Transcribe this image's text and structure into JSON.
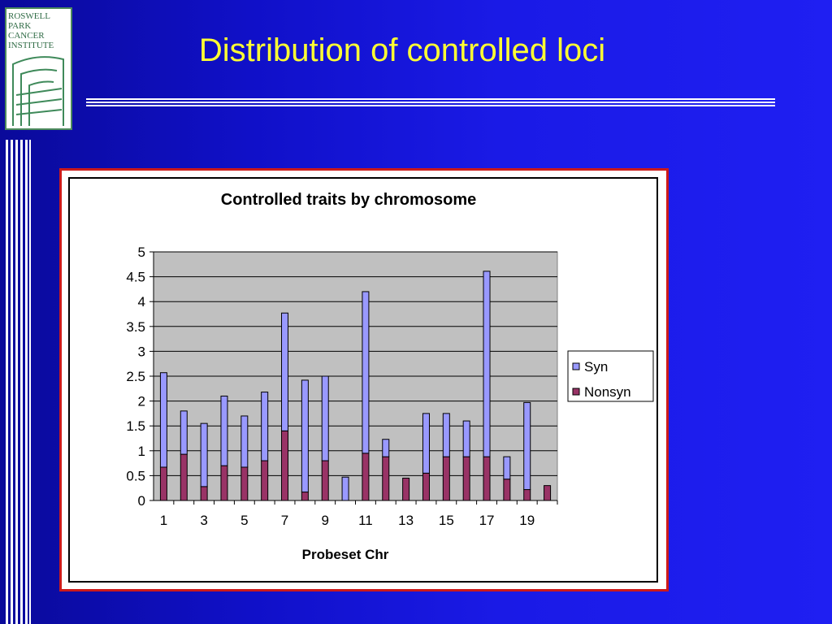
{
  "slide": {
    "title": "Distribution of controlled loci",
    "logo_lines": [
      "ROSWELL",
      "PARK",
      "CANCER",
      "INSTITUTE"
    ],
    "colors": {
      "background": "#1414d2",
      "title": "#ffff33",
      "chart_frame": "#cc1a1a"
    }
  },
  "chart_data": {
    "type": "bar",
    "stacked": true,
    "title": "Controlled traits by chromosome",
    "xlabel": "Probeset Chr",
    "ylabel": "",
    "ylim": [
      0,
      5
    ],
    "yticks": [
      "0",
      "0.5",
      "1",
      "1.5",
      "2",
      "2.5",
      "3",
      "3.5",
      "4",
      "4.5",
      "5"
    ],
    "categories": [
      "1",
      "2",
      "3",
      "4",
      "5",
      "6",
      "7",
      "8",
      "9",
      "10",
      "11",
      "12",
      "13",
      "14",
      "15",
      "16",
      "17",
      "18",
      "19",
      "20"
    ],
    "xtick_labels": [
      "1",
      "3",
      "5",
      "7",
      "9",
      "11",
      "13",
      "15",
      "17",
      "19"
    ],
    "series": [
      {
        "name": "Nonsyn",
        "color": "#993366",
        "values": [
          0.67,
          0.93,
          0.28,
          0.7,
          0.67,
          0.8,
          1.4,
          0.17,
          0.8,
          0,
          0.95,
          0.88,
          0.45,
          0.55,
          0.88,
          0.88,
          0.88,
          0.43,
          0.22,
          0.3
        ]
      },
      {
        "name": "Syn",
        "color": "#9999ff",
        "values": [
          1.9,
          0.87,
          1.27,
          1.4,
          1.03,
          1.38,
          2.37,
          2.25,
          1.7,
          0.47,
          3.25,
          0.35,
          0,
          1.2,
          0.87,
          0.72,
          3.73,
          0.45,
          1.75,
          0
        ]
      }
    ],
    "grid": true,
    "plot_background": "#c0c0c0",
    "legend_position": "right"
  }
}
